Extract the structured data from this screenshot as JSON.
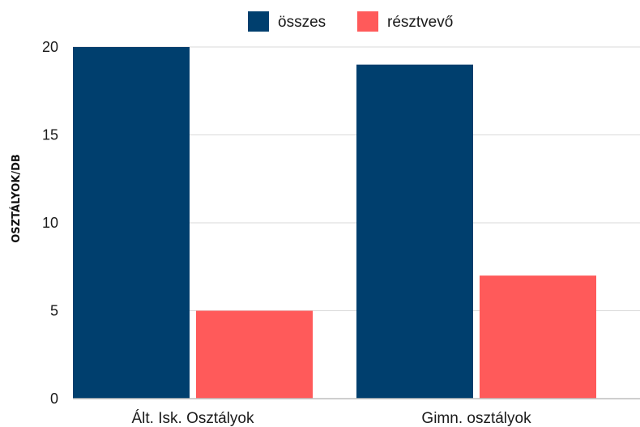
{
  "chart_data": {
    "type": "bar",
    "title": "",
    "xlabel": "",
    "ylabel": "OSZTÁLYOK/DB",
    "ylim": [
      0,
      20
    ],
    "yticks": [
      0,
      5,
      10,
      15,
      20
    ],
    "grid": true,
    "legend_position": "top-center",
    "categories": [
      "Ált. Isk. Osztályok",
      "Gimn. osztályok"
    ],
    "series": [
      {
        "name": "összes",
        "color": "#003f6e",
        "values": [
          20,
          19
        ]
      },
      {
        "name": "résztvevő",
        "color": "#ff5a5a",
        "values": [
          5,
          7
        ]
      }
    ]
  }
}
